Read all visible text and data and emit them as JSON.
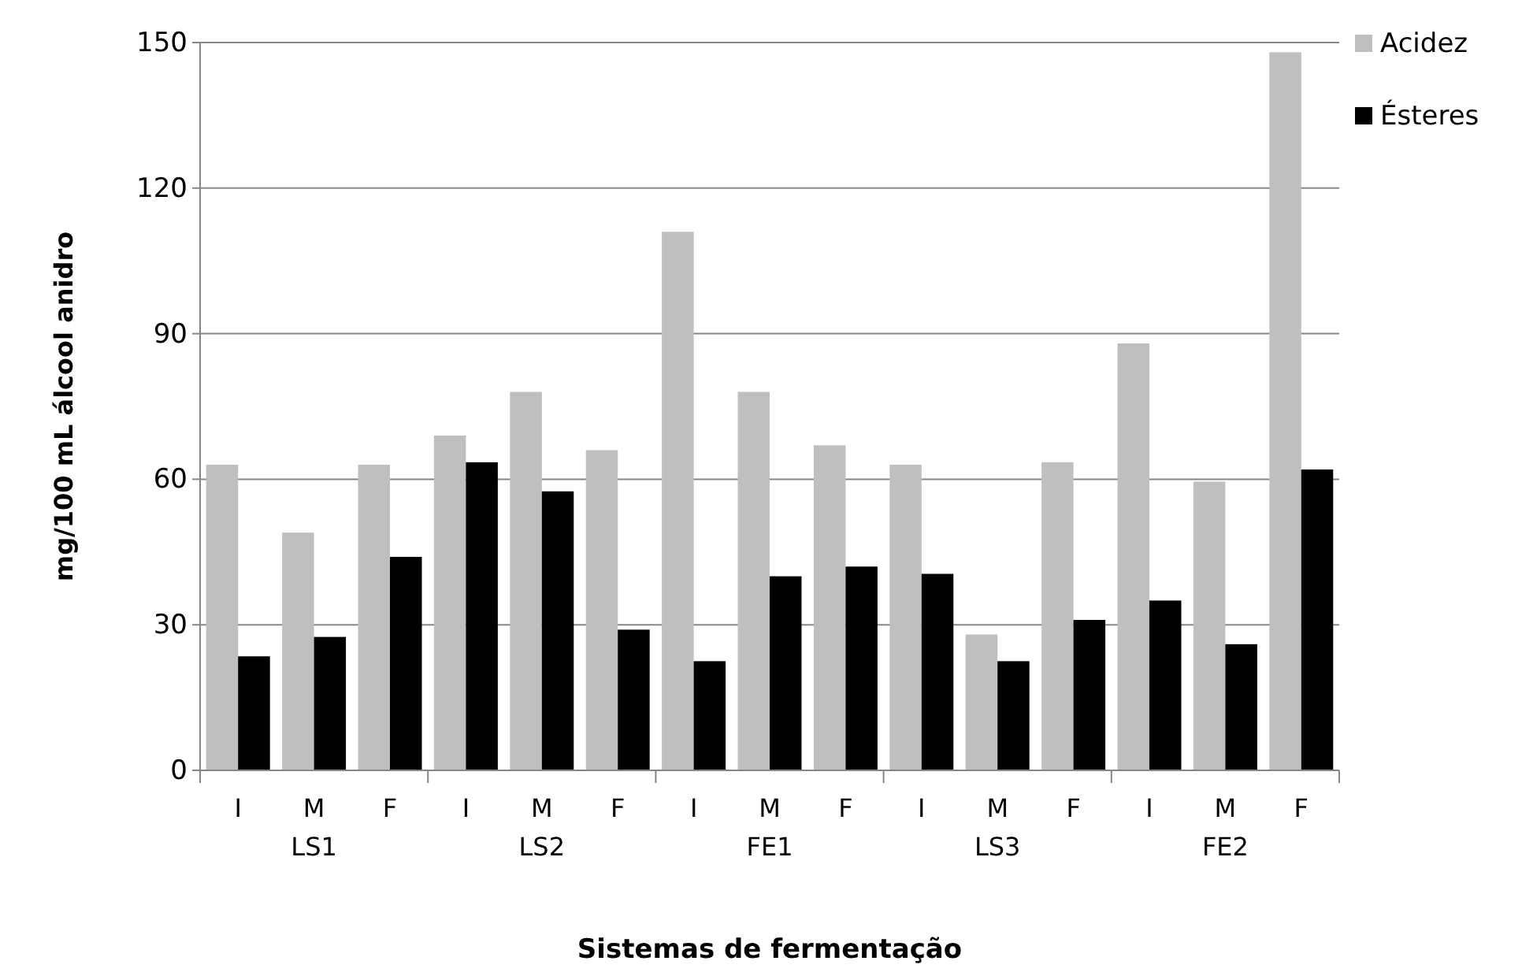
{
  "chart_data": {
    "type": "bar",
    "xlabel": "Sistemas de fermentação",
    "ylabel": "mg/100 mL álcool anidro",
    "categories": [
      "I",
      "M",
      "F",
      "I",
      "M",
      "F",
      "I",
      "M",
      "F",
      "I",
      "M",
      "F",
      "I",
      "M",
      "F"
    ],
    "series": [
      {
        "name": "Acidez",
        "color": "#bfbfbf",
        "values": [
          63,
          49,
          63,
          69,
          78,
          66,
          111,
          78,
          67,
          63,
          28,
          63.5,
          88,
          59.5,
          148
        ]
      },
      {
        "name": "Ésteres",
        "color": "#000000",
        "values": [
          23.5,
          27.5,
          44,
          63.5,
          57.5,
          29,
          22.5,
          40,
          42,
          40.5,
          22.5,
          31,
          35,
          26,
          62
        ]
      }
    ],
    "annotations": [
      "LS1",
      "LS2",
      "FE1",
      "LS3",
      "FE2"
    ],
    "ylim": [
      0,
      150
    ],
    "yticks": [
      0,
      30,
      60,
      90,
      120,
      150
    ],
    "grid": "y",
    "legend": "top right"
  }
}
